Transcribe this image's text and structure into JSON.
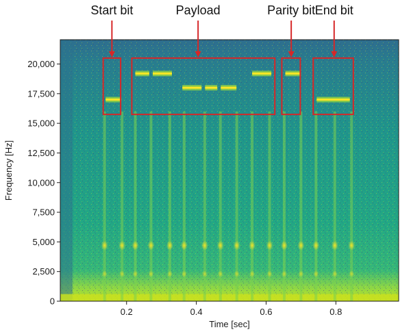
{
  "chart_data": {
    "type": "heatmap",
    "subtype": "spectrogram",
    "title": "",
    "xlabel": "Time [sec]",
    "ylabel": "Frequency [Hz]",
    "xlim": [
      0.01,
      0.98
    ],
    "ylim": [
      0,
      22050
    ],
    "x_ticks": [
      {
        "value": 0.2,
        "label": "0.2"
      },
      {
        "value": 0.4,
        "label": "0.4"
      },
      {
        "value": 0.6,
        "label": "0.6"
      },
      {
        "value": 0.8,
        "label": "0.8"
      }
    ],
    "y_ticks": [
      {
        "value": 0,
        "label": "0"
      },
      {
        "value": 2500,
        "label": "2,500"
      },
      {
        "value": 5000,
        "label": "5,000"
      },
      {
        "value": 7500,
        "label": "7,500"
      },
      {
        "value": 10000,
        "label": "10,000"
      },
      {
        "value": 12500,
        "label": "12,500"
      },
      {
        "value": 15000,
        "label": "15,000"
      },
      {
        "value": 17500,
        "label": "17,500"
      },
      {
        "value": 20000,
        "label": "20,000"
      }
    ],
    "colormap": "viridis",
    "grid": false,
    "pulse_times": [
      0.137,
      0.187,
      0.225,
      0.27,
      0.324,
      0.365,
      0.424,
      0.469,
      0.516,
      0.56,
      0.61,
      0.652,
      0.7,
      0.743,
      0.797,
      0.845
    ],
    "tones": [
      {
        "t0": 0.14,
        "t1": 0.185,
        "freq": 17000
      },
      {
        "t0": 0.225,
        "t1": 0.265,
        "freq": 19200
      },
      {
        "t0": 0.275,
        "t1": 0.33,
        "freq": 19200
      },
      {
        "t0": 0.36,
        "t1": 0.415,
        "freq": 18000
      },
      {
        "t0": 0.425,
        "t1": 0.46,
        "freq": 18000
      },
      {
        "t0": 0.47,
        "t1": 0.515,
        "freq": 18000
      },
      {
        "t0": 0.56,
        "t1": 0.615,
        "freq": 19200
      },
      {
        "t0": 0.655,
        "t1": 0.7,
        "freq": 19200
      },
      {
        "t0": 0.745,
        "t1": 0.84,
        "freq": 17000
      }
    ],
    "annotations": [
      {
        "label": "Start bit",
        "box_t": [
          0.133,
          0.183
        ],
        "box_f": [
          15750,
          20500
        ],
        "arrow_t": 0.158
      },
      {
        "label": "Payload",
        "box_t": [
          0.215,
          0.625
        ],
        "box_f": [
          15750,
          20500
        ],
        "arrow_t": 0.405
      },
      {
        "label": "Parity bit",
        "box_t": [
          0.645,
          0.698
        ],
        "box_f": [
          15750,
          20500
        ],
        "arrow_t": 0.672
      },
      {
        "label": "End bit",
        "box_t": [
          0.735,
          0.85
        ],
        "box_f": [
          15750,
          20500
        ],
        "arrow_t": 0.795
      }
    ],
    "annotation_color": "#d62728"
  }
}
